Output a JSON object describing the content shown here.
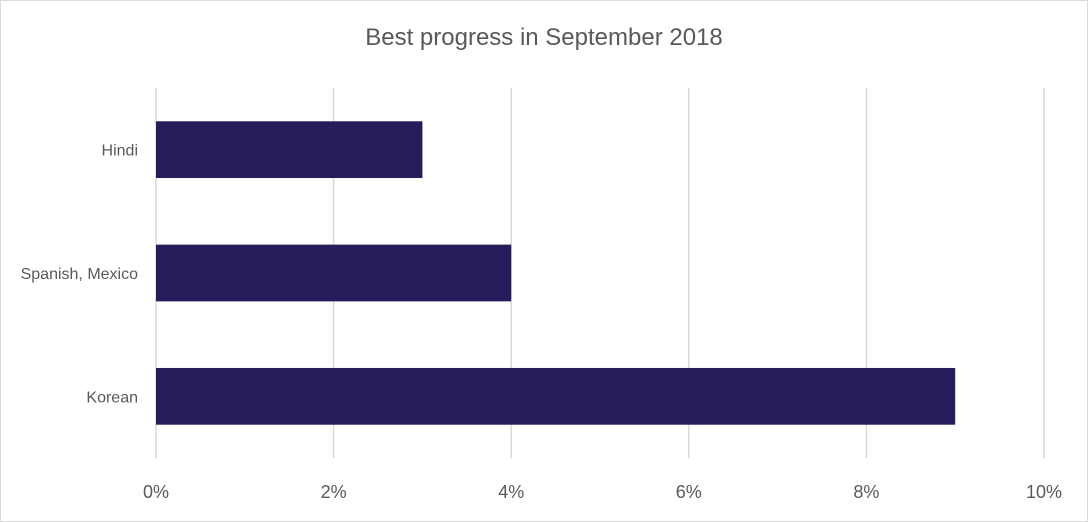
{
  "chart_data": {
    "type": "bar",
    "orientation": "horizontal",
    "title": "Best progress in September 2018",
    "xlabel": "",
    "ylabel": "",
    "categories": [
      "Hindi",
      "Spanish, Mexico",
      "Korean"
    ],
    "values": [
      0.03,
      0.04,
      0.09
    ],
    "xlim": [
      0,
      0.1
    ],
    "x_ticks": [
      0,
      0.02,
      0.04,
      0.06,
      0.08,
      0.1
    ],
    "x_tick_labels": [
      "0%",
      "2%",
      "4%",
      "6%",
      "8%",
      "10%"
    ],
    "grid": "vertical",
    "legend": "none",
    "bar_color": "#261b5b",
    "grid_color": "#d9d9d9"
  }
}
